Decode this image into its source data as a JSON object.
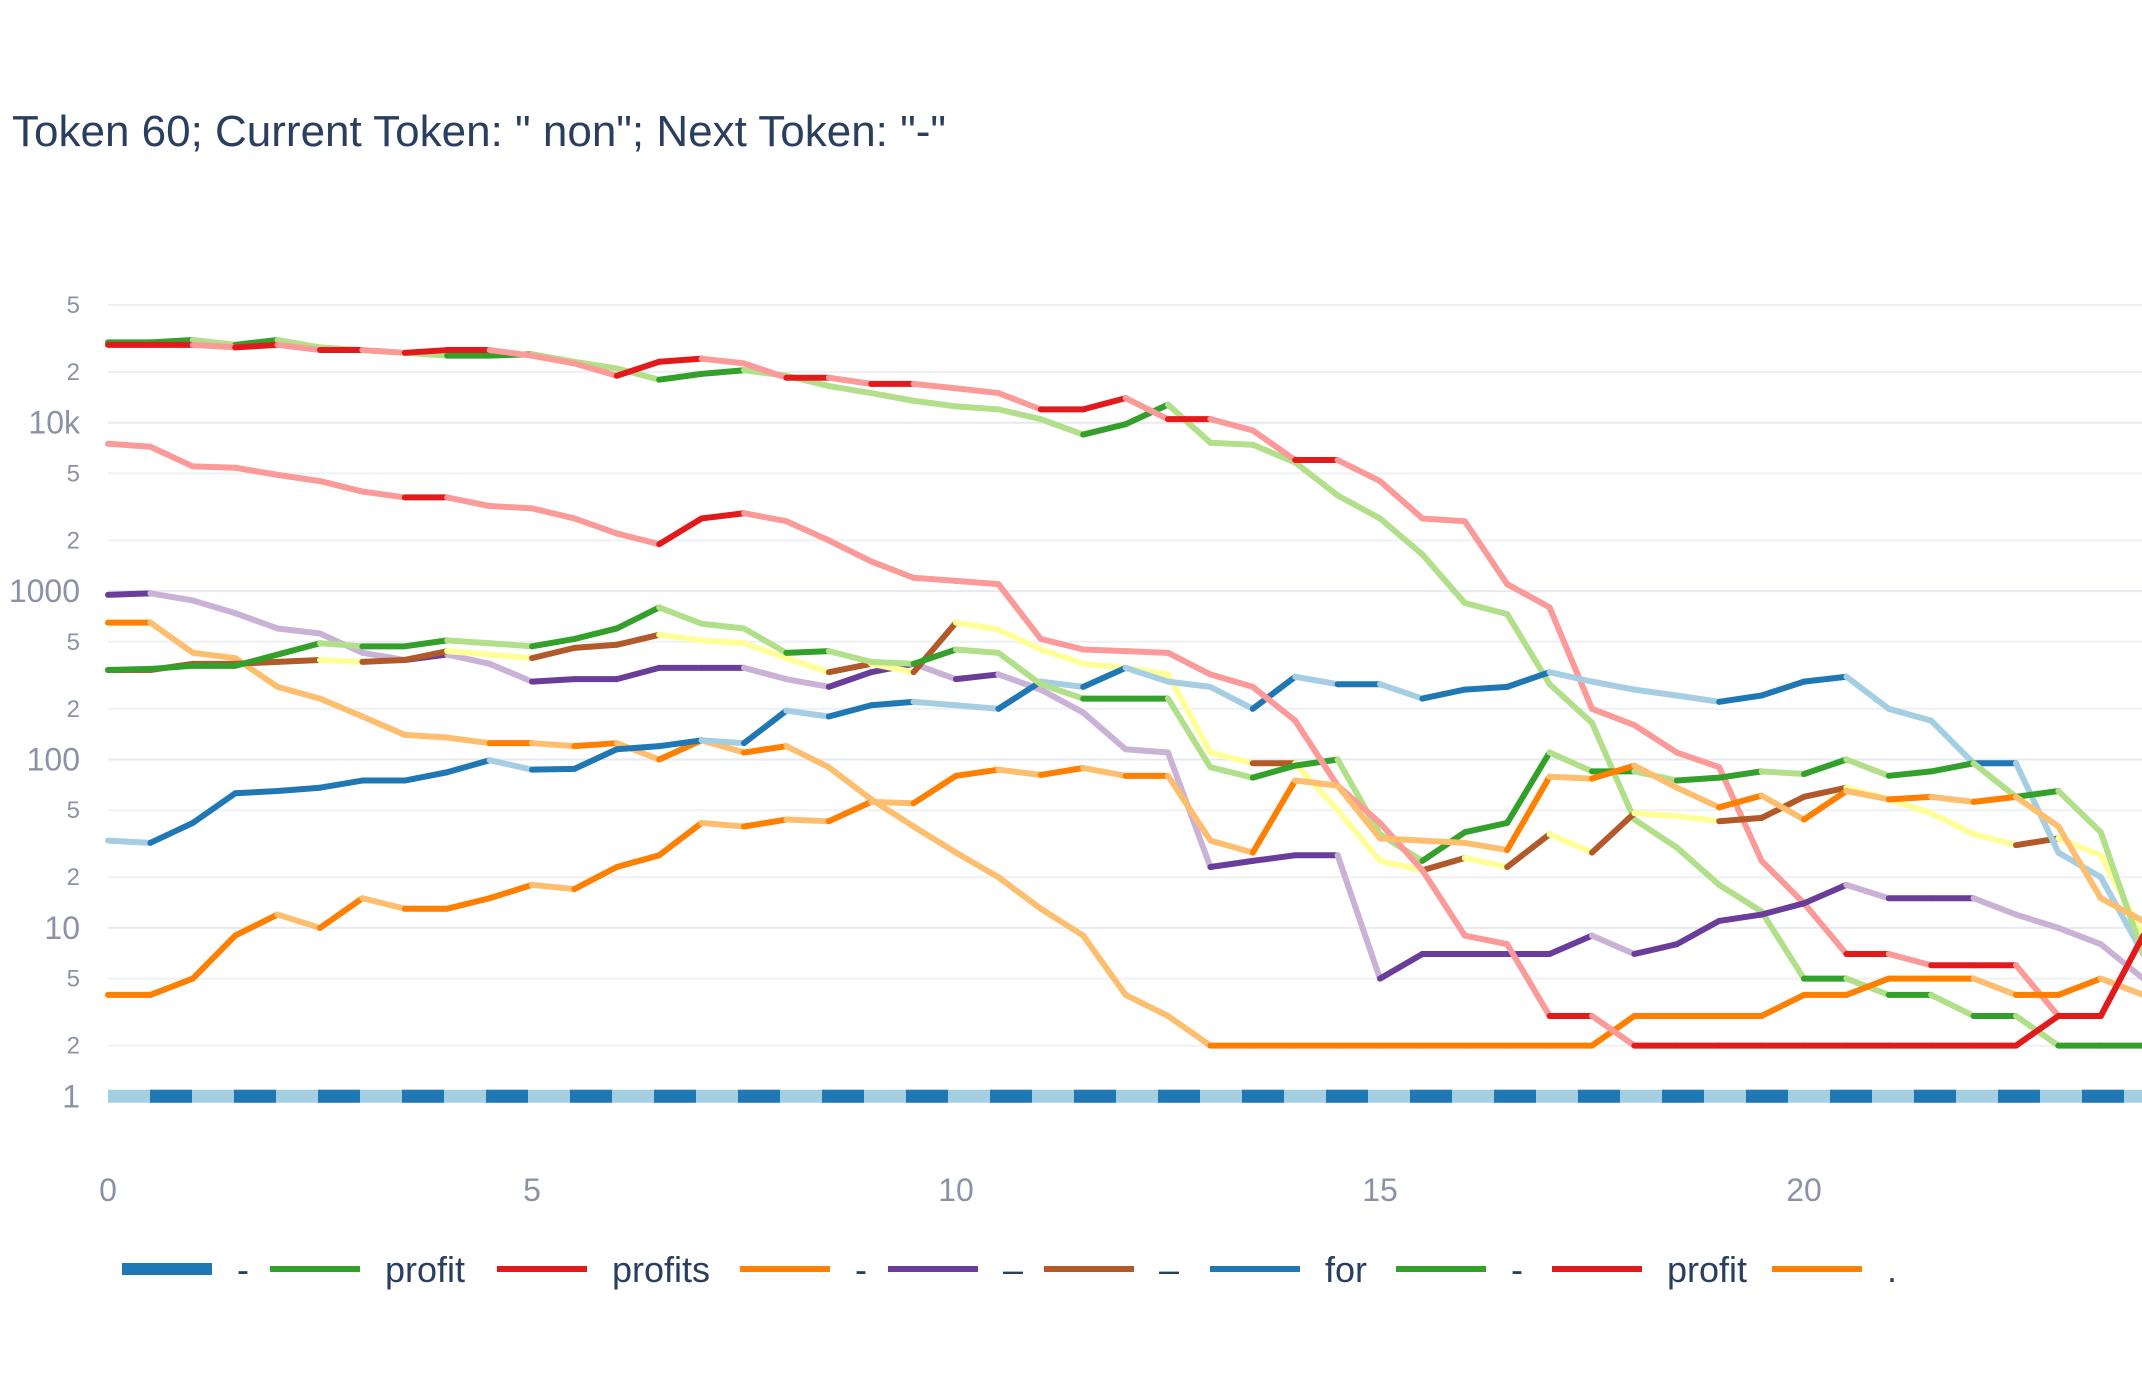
{
  "chart_data": {
    "type": "line",
    "title": "Token 60; Current Token: \" non\"; Next Token: \"-\"",
    "xlabel": "",
    "ylabel": "",
    "y_scale": "log",
    "xlim": [
      0,
      24
    ],
    "ylim": [
      0.85,
      70000
    ],
    "x_ticks": [
      "0",
      "5",
      "10",
      "15",
      "20"
    ],
    "y_major_ticks": [
      "1",
      "10",
      "100",
      "1000",
      "10k"
    ],
    "y_minor_tick_labels": [
      "2",
      "5"
    ],
    "grid": true,
    "legend_position": "bottom",
    "x": [
      0,
      0.5,
      1,
      1.5,
      2,
      2.5,
      3,
      3.5,
      4,
      4.5,
      5,
      5.5,
      6,
      6.5,
      7,
      7.5,
      8,
      8.5,
      9,
      9.5,
      10,
      10.5,
      11,
      11.5,
      12,
      12.5,
      13,
      13.5,
      14,
      14.5,
      15,
      15.5,
      16,
      16.5,
      17,
      17.5,
      18,
      18.5,
      19,
      19.5,
      20,
      20.5,
      21,
      21.5,
      22,
      22.5,
      23,
      23.5,
      24
    ],
    "series": [
      {
        "name": "-",
        "color": "#1f78b4",
        "light": "#a6cee3",
        "dash": "dashed",
        "width": 13,
        "values": [
          1,
          1,
          1,
          1,
          1,
          1,
          1,
          1,
          1,
          1,
          1,
          1,
          1,
          1,
          1,
          1,
          1,
          1,
          1,
          1,
          1,
          1,
          1,
          1,
          1,
          1,
          1,
          1,
          1,
          1,
          1,
          1,
          1,
          1,
          1,
          1,
          1,
          1,
          1,
          1,
          1,
          1,
          1,
          1,
          1,
          1,
          1,
          1,
          1
        ]
      },
      {
        "name": "profit",
        "color": "#33a02c",
        "light": "#b2df8a",
        "values": [
          30000,
          30000,
          31000,
          29000,
          31000,
          28000,
          27000,
          26000,
          25000,
          25000,
          25500,
          23000,
          21000,
          18000,
          19500,
          20500,
          19000,
          16500,
          15000,
          13500,
          12500,
          12000,
          10500,
          8500,
          9800,
          12800,
          7600,
          7400,
          5800,
          3700,
          2700,
          1650,
          850,
          730,
          280,
          165,
          44,
          30,
          18,
          12.5,
          5,
          5,
          4,
          4,
          3,
          3,
          2,
          2,
          2
        ]
      },
      {
        "name": "profits",
        "color": "#e31a1c",
        "light": "#fb9a99",
        "values": [
          29000,
          29000,
          29000,
          28000,
          29000,
          27000,
          27000,
          26000,
          27000,
          27000,
          25000,
          22500,
          19000,
          23000,
          24000,
          22500,
          18500,
          18500,
          17000,
          17000,
          16000,
          15000,
          12000,
          12000,
          14000,
          10500,
          10500,
          9000,
          6000,
          6000,
          4500,
          2700,
          2600,
          1100,
          800,
          200,
          160,
          110,
          90,
          25,
          14,
          7,
          7,
          6,
          6,
          6,
          3,
          3,
          9
        ]
      },
      {
        "name": "-",
        "color": "#ff7f00",
        "light": "#fdbf6f",
        "values": [
          650,
          650,
          430,
          400,
          270,
          230,
          180,
          140,
          135,
          125,
          125,
          120,
          125,
          100,
          130,
          110,
          120,
          90,
          58,
          40,
          28,
          20,
          13,
          9,
          4,
          3,
          2,
          2,
          2,
          2,
          2,
          2,
          2,
          2,
          2,
          2,
          3,
          3,
          3,
          3,
          4,
          4,
          5,
          5,
          5,
          4,
          4,
          5,
          4
        ]
      },
      {
        "name": "–",
        "color": "#6a3d9a",
        "light": "#cab2d6",
        "values": [
          950,
          970,
          880,
          740,
          600,
          560,
          430,
          390,
          420,
          370,
          290,
          300,
          300,
          350,
          350,
          350,
          300,
          270,
          330,
          370,
          300,
          320,
          260,
          190,
          115,
          110,
          23,
          25,
          27,
          27,
          5,
          7,
          7,
          7,
          7,
          9,
          7,
          8,
          11,
          12,
          14,
          18,
          15,
          15,
          15,
          12,
          10,
          8,
          5
        ]
      },
      {
        "name": "–",
        "color": "#b15928",
        "light": "#ffff99",
        "values": [
          340,
          340,
          370,
          370,
          380,
          390,
          380,
          390,
          440,
          420,
          400,
          460,
          480,
          550,
          510,
          490,
          400,
          330,
          370,
          330,
          650,
          590,
          450,
          370,
          350,
          320,
          110,
          95,
          95,
          50,
          25,
          22,
          26,
          23,
          36,
          28,
          48,
          46,
          43,
          45,
          60,
          68,
          58,
          48,
          36,
          31,
          34,
          27,
          9
        ]
      },
      {
        "name": "for",
        "color": "#1f78b4",
        "light": "#a6cee3",
        "values": [
          33,
          32,
          42,
          63,
          65,
          68,
          75,
          75,
          84,
          99,
          87,
          88,
          115,
          120,
          130,
          125,
          195,
          180,
          210,
          220,
          210,
          200,
          290,
          270,
          350,
          290,
          270,
          200,
          310,
          280,
          280,
          230,
          260,
          270,
          330,
          290,
          260,
          240,
          220,
          240,
          290,
          310,
          200,
          170,
          95,
          95,
          28,
          20,
          7
        ]
      },
      {
        "name": "-",
        "color": "#33a02c",
        "light": "#b2df8a",
        "values": [
          340,
          345,
          360,
          360,
          420,
          490,
          470,
          470,
          510,
          490,
          470,
          520,
          600,
          800,
          640,
          600,
          430,
          440,
          380,
          370,
          450,
          430,
          280,
          230,
          230,
          230,
          90,
          78,
          92,
          100,
          36,
          25,
          37,
          42,
          110,
          85,
          85,
          75,
          78,
          85,
          82,
          100,
          80,
          85,
          95,
          60,
          65,
          37,
          7
        ]
      },
      {
        "name": "profit",
        "color": "#e31a1c",
        "light": "#fb9a99",
        "values": [
          7500,
          7200,
          5500,
          5400,
          4900,
          4500,
          3900,
          3600,
          3600,
          3200,
          3100,
          2700,
          2200,
          1900,
          2700,
          2900,
          2600,
          2000,
          1500,
          1200,
          1150,
          1100,
          520,
          450,
          440,
          430,
          320,
          270,
          170,
          70,
          42,
          22,
          9,
          8,
          3,
          3,
          2,
          2,
          2,
          2,
          2,
          2,
          2,
          2,
          2,
          2,
          3,
          3,
          9
        ]
      },
      {
        "name": ".",
        "color": "#ff7f00",
        "light": "#fdbf6f",
        "values": [
          4,
          4,
          5,
          9,
          12,
          10,
          15,
          13,
          13,
          15,
          18,
          17,
          23,
          27,
          42,
          40,
          44,
          43,
          56,
          55,
          80,
          87,
          81,
          89,
          80,
          80,
          33,
          28,
          75,
          70,
          34,
          33,
          32,
          29,
          79,
          77,
          92,
          68,
          52,
          61,
          44,
          65,
          58,
          60,
          56,
          60,
          40,
          15,
          11
        ]
      }
    ]
  }
}
